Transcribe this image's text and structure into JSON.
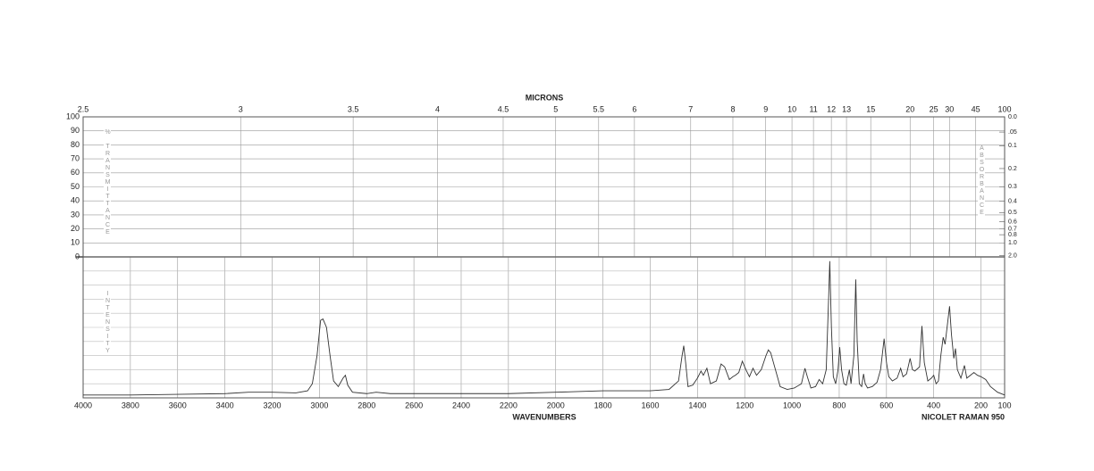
{
  "chart_data": {
    "type": "line",
    "xlabel": "WAVENUMBERS",
    "x2label": "MICRONS",
    "annotation": "NICOLET RAMAN 950",
    "ylabel": "% TRANSMITTANCE",
    "y2label": "ABSORBANCE",
    "intensity_label": "INTENSITY",
    "color": "#333333",
    "xlim": [
      4000,
      100
    ],
    "xticks": [
      4000,
      3800,
      3600,
      3400,
      3200,
      3000,
      2800,
      2600,
      2400,
      2200,
      2000,
      1800,
      1600,
      1400,
      1200,
      1000,
      800,
      600,
      400,
      200,
      100
    ],
    "x2lim": [
      2.5,
      100
    ],
    "x2ticks": [
      2.5,
      3,
      3.5,
      4,
      4.5,
      5,
      5.5,
      6,
      7,
      8,
      9,
      10,
      11,
      12,
      13,
      15,
      20,
      25,
      30,
      45,
      100
    ],
    "ylim": [
      0,
      100
    ],
    "yticks": [
      0,
      10,
      20,
      30,
      40,
      50,
      60,
      70,
      80,
      90,
      100
    ],
    "y2ticks": [
      {
        "value": 0,
        "label": "0.0"
      },
      {
        "value": 0.05,
        "label": ".05"
      },
      {
        "value": 0.1,
        "label": "0.1"
      },
      {
        "value": 0.2,
        "label": "0.2"
      },
      {
        "value": 0.3,
        "label": "0.3"
      },
      {
        "value": 0.4,
        "label": "0.4"
      },
      {
        "value": 0.5,
        "label": "0.5"
      },
      {
        "value": 0.6,
        "label": "0.6"
      },
      {
        "value": 0.7,
        "label": "0.7"
      },
      {
        "value": 0.8,
        "label": "0.8"
      },
      {
        "value": 1,
        "label": "1.0"
      },
      {
        "value": 2,
        "label": "2.0"
      }
    ],
    "intensity_ylim": [
      0,
      100
    ],
    "x": [
      4000,
      3800,
      3600,
      3400,
      3300,
      3200,
      3100,
      3050,
      3030,
      3010,
      2995,
      2985,
      2970,
      2955,
      2940,
      2920,
      2900,
      2890,
      2880,
      2860,
      2800,
      2760,
      2700,
      2500,
      2200,
      2000,
      1800,
      1600,
      1520,
      1480,
      1465,
      1458,
      1450,
      1440,
      1420,
      1400,
      1385,
      1375,
      1360,
      1345,
      1320,
      1300,
      1285,
      1265,
      1250,
      1240,
      1225,
      1210,
      1195,
      1180,
      1165,
      1150,
      1130,
      1110,
      1100,
      1090,
      1070,
      1050,
      1020,
      990,
      960,
      945,
      935,
      920,
      900,
      885,
      870,
      855,
      845,
      840,
      833,
      825,
      815,
      805,
      798,
      790,
      780,
      770,
      757,
      750,
      738,
      730,
      724,
      715,
      705,
      697,
      690,
      680,
      660,
      640,
      625,
      610,
      600,
      590,
      575,
      555,
      540,
      530,
      515,
      500,
      490,
      480,
      460,
      450,
      440,
      425,
      410,
      400,
      390,
      380,
      370,
      360,
      352,
      340,
      333,
      325,
      315,
      308,
      300,
      285,
      270,
      260,
      245,
      230,
      215,
      200,
      180,
      160,
      130,
      100
    ],
    "values": [
      2,
      2,
      2.5,
      3,
      4,
      4,
      3.5,
      5,
      10,
      30,
      55,
      56,
      50,
      30,
      12,
      8,
      14,
      16,
      9,
      4,
      3,
      4,
      3,
      3,
      3,
      4,
      5,
      5,
      6,
      12,
      30,
      37,
      25,
      8,
      9,
      14,
      19,
      16,
      21,
      10,
      12,
      24,
      22,
      13,
      15,
      16,
      18,
      26,
      20,
      15,
      21,
      16,
      20,
      30,
      34,
      32,
      20,
      8,
      6,
      7,
      10,
      21,
      15,
      7,
      8,
      13,
      10,
      20,
      70,
      97,
      50,
      15,
      10,
      20,
      36,
      20,
      10,
      9,
      20,
      10,
      30,
      84,
      40,
      10,
      8,
      17,
      10,
      7,
      8,
      11,
      20,
      42,
      25,
      15,
      12,
      14,
      21,
      15,
      17,
      28,
      20,
      19,
      22,
      51,
      25,
      12,
      14,
      16,
      10,
      12,
      30,
      43,
      38,
      55,
      65,
      45,
      28,
      35,
      20,
      14,
      23,
      14,
      16,
      18,
      16,
      15,
      13,
      8,
      4,
      2
    ]
  }
}
